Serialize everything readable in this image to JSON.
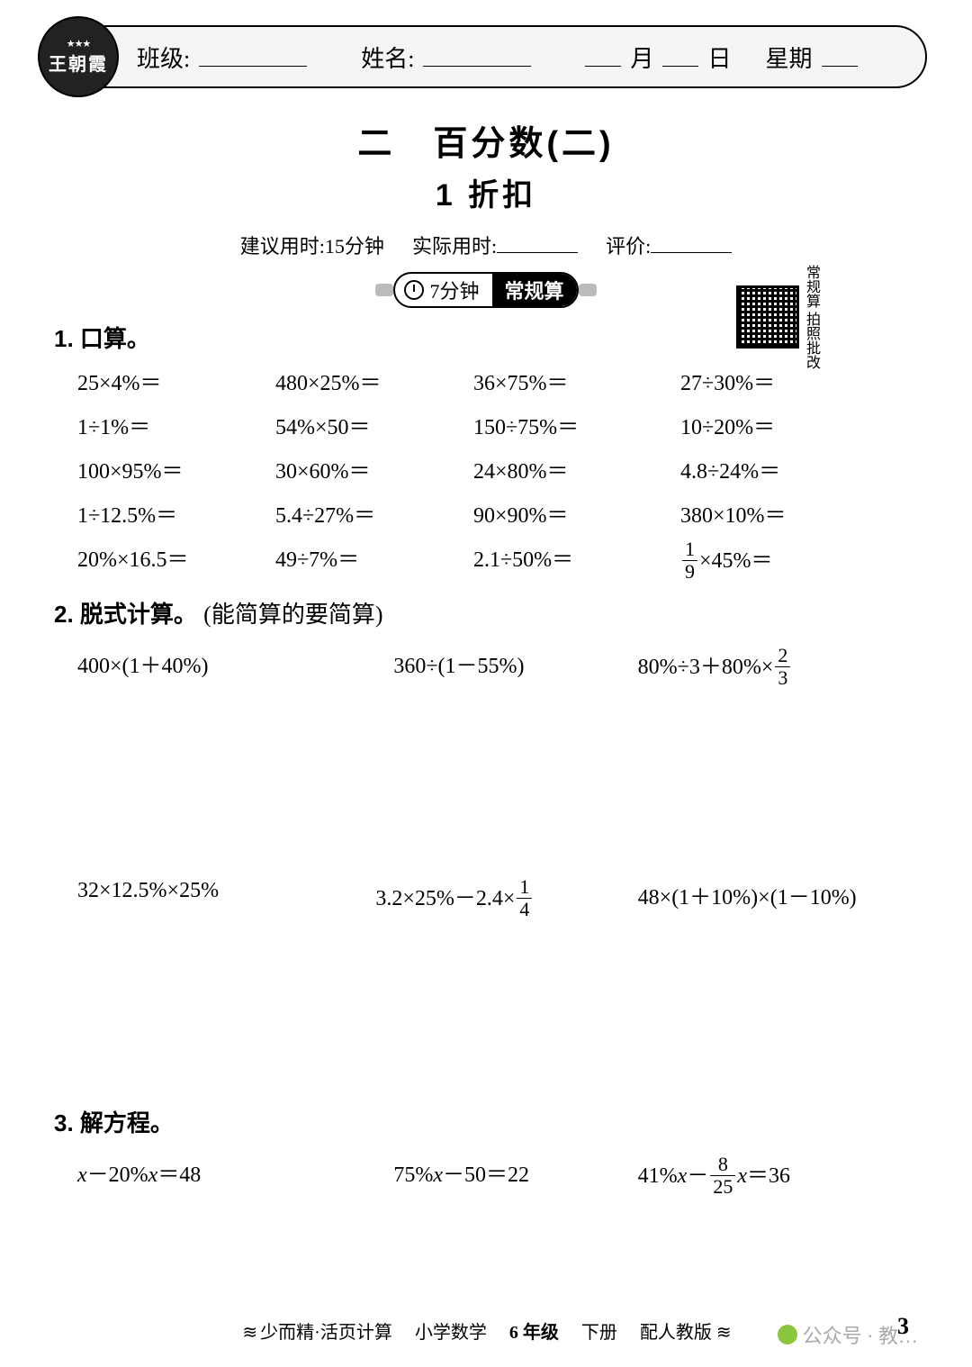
{
  "header": {
    "logo_brand": "王朝霞",
    "class_label": "班级:",
    "name_label": "姓名:",
    "month_label": "月",
    "day_label": "日",
    "weekday_label": "星期"
  },
  "chapter": {
    "number_title": "二　百分数(二)",
    "sub_title": "1  折扣"
  },
  "timing": {
    "suggest_label": "建议用时:",
    "suggest_value": "15分钟",
    "actual_label": "实际用时:",
    "rating_label": "评价:"
  },
  "badge": {
    "time_text": "7分钟",
    "mode_text": "常规算",
    "qr_caption": "常规算 拍照批改"
  },
  "q1": {
    "title": "1. 口算。",
    "cells": [
      "25×4%＝",
      "480×25%＝",
      "36×75%＝",
      "27÷30%＝",
      "1÷1%＝",
      "54%×50＝",
      "150÷75%＝",
      "10÷20%＝",
      "100×95%＝",
      "30×60%＝",
      "24×80%＝",
      "4.8÷24%＝",
      "1÷12.5%＝",
      "5.4÷27%＝",
      "90×90%＝",
      "380×10%＝",
      "20%×16.5＝",
      "49÷7%＝",
      "2.1÷50%＝",
      "FRAC19×45%＝"
    ]
  },
  "q2": {
    "title": "2. 脱式计算。",
    "note": "(能简算的要简算)",
    "row1": [
      "400×(1＋40%)",
      "360÷(1－55%)",
      "80%÷3＋80%× 2/3"
    ],
    "row2": [
      "32×12.5%×25%",
      "3.2×25%－2.4× 1/4",
      "48×(1＋10%)×(1－10%)"
    ]
  },
  "q3": {
    "title": "3. 解方程。",
    "row": [
      "x－20%x＝48",
      "75%x－50＝22",
      "41%x－ 8/25 x＝36"
    ]
  },
  "footer": {
    "series": "少而精·活页计算",
    "subject": "小学数学",
    "grade": "6 年级",
    "term": "下册",
    "edition": "配人教版",
    "page": "3",
    "watermark": "公众号 · 教…"
  }
}
